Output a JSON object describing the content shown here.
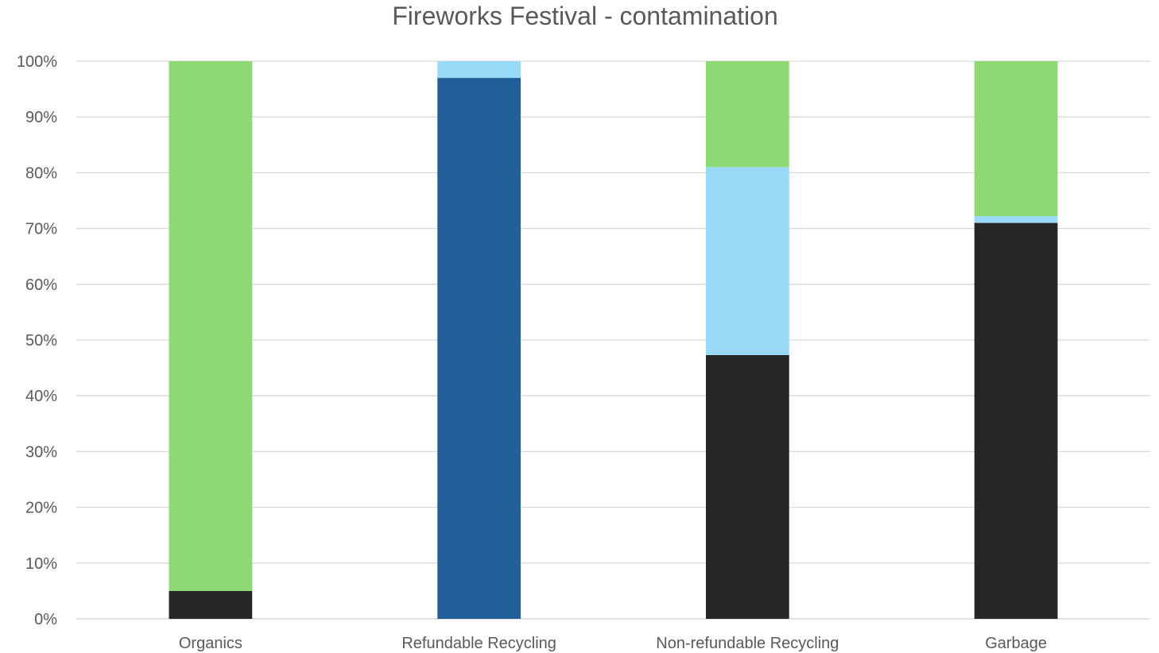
{
  "chart_data": {
    "type": "bar",
    "stacked": true,
    "percent_stacked": true,
    "title": "Fireworks Festival - contamination",
    "xlabel": "",
    "ylabel": "",
    "ylim": [
      0,
      100
    ],
    "y_ticks": [
      "0%",
      "10%",
      "20%",
      "30%",
      "40%",
      "50%",
      "60%",
      "70%",
      "80%",
      "90%",
      "100%"
    ],
    "grid": true,
    "legend": "none",
    "categories": [
      "Organics",
      "Refundable Recycling",
      "Non-refundable Recycling",
      "Garbage"
    ],
    "series": [
      {
        "color": "#262626",
        "values": [
          5,
          0,
          47.3,
          71
        ]
      },
      {
        "color": "#215f9a",
        "values": [
          0,
          97,
          0,
          0
        ]
      },
      {
        "color": "#98daf7",
        "values": [
          0,
          3,
          33.7,
          1.2
        ]
      },
      {
        "color": "#8fd975",
        "values": [
          95,
          0,
          19,
          27.8
        ]
      }
    ]
  }
}
